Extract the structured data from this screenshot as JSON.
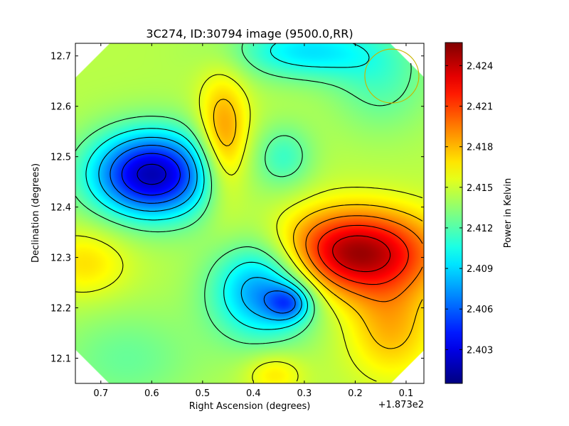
{
  "chart_data": {
    "type": "heatmap",
    "title": "3C274, ID:30794 image (9500.0,RR)",
    "xlabel": "Right Ascension (degrees)",
    "ylabel": "Declination (degrees)",
    "x_offset_label": "+1.873e2",
    "x_reversed": true,
    "xlim": [
      0.75,
      0.065
    ],
    "ylim": [
      12.05,
      12.725
    ],
    "xticks": [
      0.7,
      0.6,
      0.5,
      0.4,
      0.3,
      0.2,
      0.1
    ],
    "xtick_labels": [
      "0.7",
      "0.6",
      "0.5",
      "0.4",
      "0.3",
      "0.2",
      "0.1"
    ],
    "yticks": [
      12.1,
      12.2,
      12.3,
      12.4,
      12.5,
      12.6,
      12.7
    ],
    "ytick_labels": [
      "12.1",
      "12.2",
      "12.3",
      "12.4",
      "12.5",
      "12.6",
      "12.7"
    ],
    "colormap": "jet",
    "colorbar": {
      "label": "Power in Kelvin",
      "vmin": 2.4005,
      "vmax": 2.4257,
      "ticks": [
        2.403,
        2.406,
        2.409,
        2.412,
        2.415,
        2.418,
        2.421,
        2.424
      ],
      "tick_labels": [
        "2.403",
        "2.406",
        "2.409",
        "2.412",
        "2.415",
        "2.418",
        "2.421",
        "2.424"
      ]
    },
    "base_level": 2.4145,
    "features": [
      {
        "kind": "minimum",
        "ra": 0.6,
        "dec": 12.465,
        "peak": 2.4018,
        "sigma_ra": 0.085,
        "sigma_dec": 0.06
      },
      {
        "kind": "minimum",
        "ra": 0.38,
        "dec": 12.24,
        "peak": 2.4065,
        "sigma_ra": 0.07,
        "sigma_dec": 0.07
      },
      {
        "kind": "minimum",
        "ra": 0.33,
        "dec": 12.21,
        "peak": 2.4095,
        "sigma_ra": 0.03,
        "sigma_dec": 0.025
      },
      {
        "kind": "maximum",
        "ra": 0.2,
        "dec": 12.31,
        "peak": 2.425,
        "sigma_ra": 0.11,
        "sigma_dec": 0.06
      },
      {
        "kind": "maximum",
        "ra": 0.13,
        "dec": 12.16,
        "peak": 2.418,
        "sigma_ra": 0.06,
        "sigma_dec": 0.07
      },
      {
        "kind": "maximum",
        "ra": 0.46,
        "dec": 12.53,
        "peak": 2.4195,
        "sigma_ra": 0.035,
        "sigma_dec": 0.09
      },
      {
        "kind": "maximum",
        "ra": 0.73,
        "dec": 12.29,
        "peak": 2.417,
        "sigma_ra": 0.06,
        "sigma_dec": 0.05
      },
      {
        "kind": "maximum",
        "ra": 0.36,
        "dec": 12.07,
        "peak": 2.417,
        "sigma_ra": 0.04,
        "sigma_dec": 0.03
      },
      {
        "kind": "minimum",
        "ra": 0.3,
        "dec": 12.71,
        "peak": 2.4095,
        "sigma_ra": 0.1,
        "sigma_dec": 0.04
      },
      {
        "kind": "minimum",
        "ra": 0.34,
        "dec": 12.5,
        "peak": 2.4115,
        "sigma_ra": 0.04,
        "sigma_dec": 0.045
      },
      {
        "kind": "minimum",
        "ra": 0.15,
        "dec": 12.65,
        "peak": 2.412,
        "sigma_ra": 0.07,
        "sigma_dec": 0.07
      },
      {
        "kind": "minimum",
        "ra": 0.65,
        "dec": 12.1,
        "peak": 2.4125,
        "sigma_ra": 0.1,
        "sigma_dec": 0.07
      }
    ],
    "contour_levels": [
      2.4025,
      2.4045,
      2.4065,
      2.4085,
      2.4105,
      2.4125,
      2.4155,
      2.4175,
      2.4195,
      2.4215,
      2.4235
    ],
    "beam_marker": {
      "shape": "circle",
      "ra": 0.128,
      "dec": 12.66,
      "color": "#c8b400"
    }
  }
}
